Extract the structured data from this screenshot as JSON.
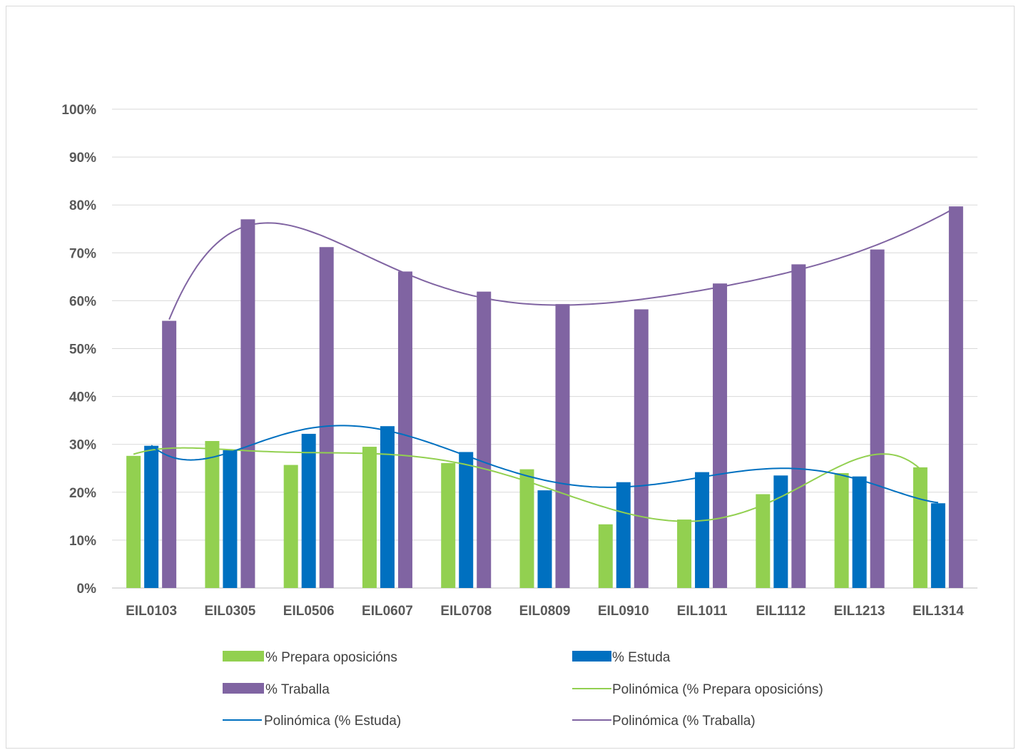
{
  "chart_data": {
    "type": "bar",
    "title": "",
    "xlabel": "",
    "ylabel": "",
    "ylim": [
      0,
      100
    ],
    "ytick_step": 10,
    "y_tick_format": "percent",
    "grid": true,
    "legend_position": "bottom",
    "categories": [
      "EIL0103",
      "EIL0305",
      "EIL0506",
      "EIL0607",
      "EIL0708",
      "EIL0809",
      "EIL0910",
      "EIL1011",
      "EIL1112",
      "EIL1213",
      "EIL1314"
    ],
    "series": [
      {
        "name": "% Prepara oposicións",
        "color": "#92d050",
        "values": [
          27.6,
          30.7,
          25.7,
          29.5,
          26.1,
          24.8,
          13.3,
          14.3,
          19.6,
          24.0,
          25.2
        ]
      },
      {
        "name": "% Estuda",
        "color": "#0070c0",
        "values": [
          29.7,
          28.8,
          32.2,
          33.8,
          28.4,
          20.4,
          22.1,
          24.2,
          23.5,
          23.3,
          17.7
        ]
      },
      {
        "name": "% Traballa",
        "color": "#8064a2",
        "values": [
          55.8,
          77.0,
          71.2,
          66.1,
          61.9,
          59.3,
          58.2,
          63.6,
          67.6,
          70.7,
          79.7
        ]
      }
    ],
    "trendlines": [
      {
        "name": "Polinómica (% Prepara oposicións)",
        "color": "#92d050",
        "of_series": "% Prepara oposicións",
        "degree": 6
      },
      {
        "name": "Polinómica (% Estuda)",
        "color": "#0070c0",
        "of_series": "% Estuda",
        "degree": 6
      },
      {
        "name": "Polinómica (% Traballa)",
        "color": "#8064a2",
        "of_series": "% Traballa",
        "degree": 6
      }
    ]
  }
}
